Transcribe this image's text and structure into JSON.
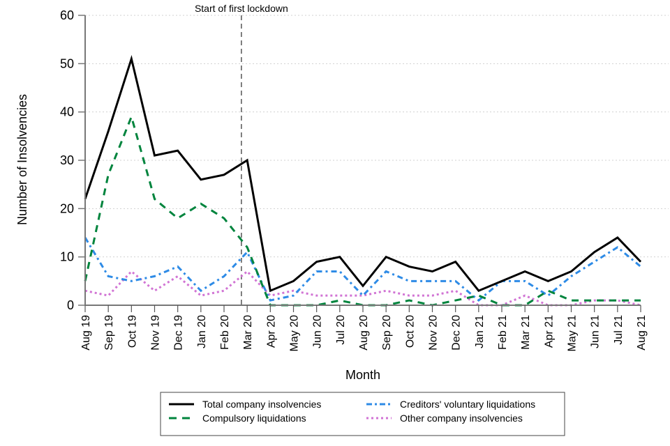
{
  "chart_data": {
    "type": "line",
    "title": "",
    "xlabel": "Month",
    "ylabel": "Number of Insolvencies",
    "ylim": [
      0,
      60
    ],
    "yticks": [
      0,
      10,
      20,
      30,
      40,
      50,
      60
    ],
    "grid": "horizontal dotted",
    "categories": [
      "Aug 19",
      "Sep 19",
      "Oct 19",
      "Nov 19",
      "Dec 19",
      "Jan 20",
      "Feb 20",
      "Mar 20",
      "Apr 20",
      "May 20",
      "Jun 20",
      "Jul 20",
      "Aug 20",
      "Sep 20",
      "Oct 20",
      "Nov 20",
      "Dec 20",
      "Jan 21",
      "Feb 21",
      "Mar 21",
      "Apr 21",
      "May 21",
      "Jun 21",
      "Jul 21",
      "Aug 21"
    ],
    "annotation": {
      "text": "Start of first lockdown",
      "position_between": [
        "Feb 20",
        "Mar 20"
      ],
      "offset_fraction": 0.75,
      "style": "vertical dashed line"
    },
    "legend_position": "bottom",
    "series": [
      {
        "name": "Total company insolvencies",
        "color": "#000000",
        "style": "solid",
        "values": [
          22,
          36,
          51,
          31,
          32,
          26,
          27,
          30,
          3,
          5,
          9,
          10,
          4,
          10,
          8,
          7,
          9,
          3,
          5,
          7,
          5,
          7,
          11,
          14,
          9
        ]
      },
      {
        "name": "Compulsory liquidations",
        "color": "#00843D",
        "style": "dashed",
        "values": [
          5,
          27,
          39,
          22,
          18,
          21,
          18,
          12,
          0,
          0,
          0,
          1,
          0,
          0,
          1,
          0,
          1,
          2,
          0,
          0,
          3,
          1,
          1,
          1,
          1
        ]
      },
      {
        "name": "Creditors' voluntary liquidations",
        "color": "#2E8BE6",
        "style": "dashdot",
        "values": [
          14,
          6,
          5,
          6,
          8,
          3,
          6,
          11,
          1,
          2,
          7,
          7,
          2,
          7,
          5,
          5,
          5,
          1,
          5,
          5,
          2,
          6,
          9,
          12,
          8
        ]
      },
      {
        "name": "Other company insolvencies",
        "color": "#D174D4",
        "style": "dotted",
        "values": [
          3,
          2,
          7,
          3,
          6,
          2,
          3,
          7,
          2,
          3,
          2,
          2,
          2,
          3,
          2,
          2,
          3,
          0,
          0,
          2,
          0,
          0,
          1,
          1,
          0
        ]
      }
    ]
  }
}
